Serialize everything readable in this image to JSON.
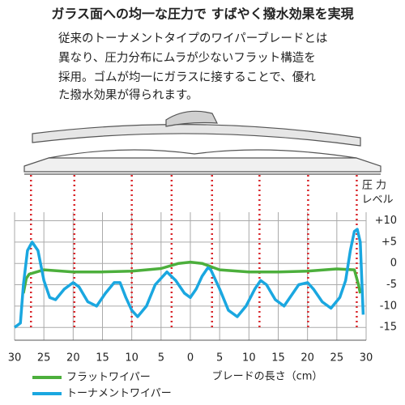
{
  "header": {
    "title": "ガラス面への均一な圧力で すばやく撥水効果を実現"
  },
  "description": [
    "従来のトーナメントタイプのワイパーブレードとは",
    "異なり、圧力分布にムラが少ないフラット構造を",
    "採用。ゴムが均一にガラスに接することで、優れ",
    "た撥水効果が得られます。"
  ],
  "chart_data": {
    "type": "line",
    "y_label": [
      "圧 力",
      "レベル"
    ],
    "x_label": "ブレードの長さ（cm）",
    "xlim": [
      -30,
      30
    ],
    "xticks": [
      {
        "value": -30,
        "label": "30"
      },
      {
        "value": -25,
        "label": "25"
      },
      {
        "value": -20,
        "label": "20"
      },
      {
        "value": -15,
        "label": "15"
      },
      {
        "value": -10,
        "label": "10"
      },
      {
        "value": -5,
        "label": "5"
      },
      0,
      5,
      10,
      15,
      20,
      25,
      30
    ],
    "ylim": [
      -18,
      12
    ],
    "yticks": [
      {
        "value": 10,
        "label": "+10"
      },
      {
        "value": 5,
        "label": "+5"
      },
      0,
      -5,
      -10,
      -15
    ],
    "grid": true,
    "vlines": {
      "color": "#d9262b",
      "x": [
        -27.2,
        -19.8,
        -10,
        -3.2,
        3.7,
        11.8,
        20.1,
        28.4
      ]
    },
    "series": [
      {
        "name": "フラットワイパー",
        "color": "#4caf3c",
        "x": [
          -28.5,
          -28,
          -27.5,
          -25,
          -20,
          -15,
          -10,
          -5,
          -2,
          0,
          2,
          5,
          10,
          15,
          20,
          25,
          28,
          28.7,
          29
        ],
        "values": [
          -7,
          -3.5,
          -2.5,
          -1.5,
          -2,
          -2,
          -1.8,
          -1.2,
          0,
          0.3,
          0,
          -1.5,
          -2,
          -2,
          -1.8,
          -1.3,
          -1.5,
          -5,
          -7
        ]
      },
      {
        "name": "トーナメントワイパー",
        "color": "#1aa7e0",
        "x": [
          -30,
          -29,
          -28.5,
          -27.8,
          -27,
          -26,
          -25,
          -24,
          -23,
          -21.5,
          -20,
          -19,
          -17.5,
          -16,
          -14.5,
          -13,
          -12,
          -11,
          -10,
          -9,
          -7.5,
          -6,
          -4,
          -2.5,
          -1,
          0,
          1,
          2,
          3,
          3.5,
          5,
          6.5,
          8,
          9.5,
          11,
          12,
          13,
          14.5,
          16,
          17,
          18.5,
          20,
          21,
          22.5,
          24,
          25.5,
          26.5,
          27.3,
          28,
          28.5,
          29,
          29.3,
          29.5
        ],
        "values": [
          -15,
          -14,
          -5,
          3,
          5,
          3,
          -4,
          -8,
          -8.5,
          -6,
          -4.5,
          -5.5,
          -9,
          -10,
          -7,
          -4.5,
          -4.5,
          -8,
          -11,
          -12.5,
          -10,
          -5,
          -2,
          -4,
          -7,
          -8,
          -6,
          -3,
          -1,
          -1.5,
          -6,
          -11,
          -12.5,
          -10,
          -6,
          -4,
          -5,
          -8.5,
          -10,
          -8,
          -5,
          -4.5,
          -6,
          -9,
          -10.5,
          -8,
          -4,
          3,
          7.5,
          8,
          5,
          -5,
          -12
        ]
      }
    ]
  }
}
